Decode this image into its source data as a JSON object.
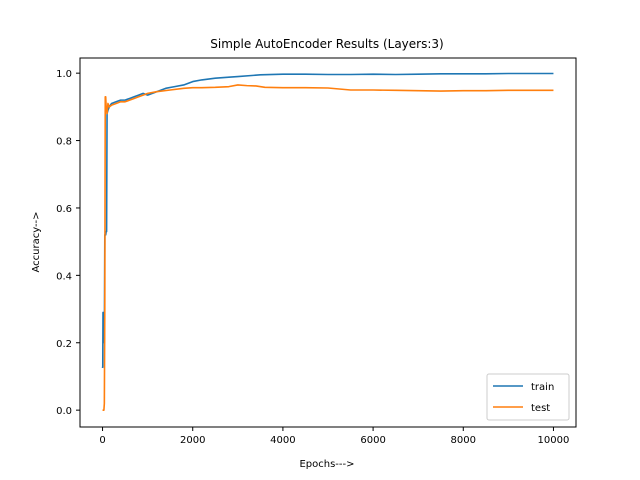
{
  "chart_data": {
    "type": "line",
    "title": "Simple AutoEncoder Results (Layers:3)",
    "xlabel": "Epochs--->",
    "ylabel": "Accuracy-->",
    "xlim": [
      -500,
      10500
    ],
    "ylim": [
      -0.05,
      1.045
    ],
    "xticks": [
      0,
      2000,
      4000,
      6000,
      8000,
      10000
    ],
    "yticks": [
      0.0,
      0.2,
      0.4,
      0.6,
      0.8,
      1.0
    ],
    "xtick_labels": [
      "0",
      "2000",
      "4000",
      "6000",
      "8000",
      "10000"
    ],
    "ytick_labels": [
      "0.0",
      "0.2",
      "0.4",
      "0.6",
      "0.8",
      "1.0"
    ],
    "grid": false,
    "legend_position": "lower right",
    "series": [
      {
        "name": "train",
        "color": "#1f77b4",
        "x": [
          0,
          5,
          10,
          20,
          30,
          40,
          50,
          60,
          70,
          80,
          90,
          100,
          120,
          150,
          200,
          300,
          400,
          500,
          600,
          700,
          800,
          900,
          1000,
          1200,
          1400,
          1600,
          1800,
          2000,
          2200,
          2500,
          2800,
          3000,
          3500,
          4000,
          4500,
          5000,
          5500,
          6000,
          6500,
          7000,
          7500,
          8000,
          8500,
          9000,
          9500,
          10000
        ],
        "y": [
          0.125,
          0.13,
          0.29,
          0.28,
          0.27,
          0.2,
          0.52,
          0.52,
          0.52,
          0.53,
          0.53,
          0.88,
          0.89,
          0.9,
          0.91,
          0.915,
          0.92,
          0.92,
          0.925,
          0.93,
          0.935,
          0.94,
          0.935,
          0.945,
          0.955,
          0.96,
          0.965,
          0.975,
          0.98,
          0.985,
          0.988,
          0.99,
          0.995,
          0.997,
          0.997,
          0.996,
          0.996,
          0.997,
          0.996,
          0.997,
          0.998,
          0.998,
          0.998,
          0.999,
          0.999,
          0.999
        ]
      },
      {
        "name": "test",
        "color": "#ff7f0e",
        "x": [
          0,
          10,
          20,
          30,
          40,
          50,
          60,
          70,
          80,
          100,
          120,
          150,
          200,
          300,
          400,
          500,
          600,
          700,
          800,
          900,
          1000,
          1200,
          1500,
          1800,
          2000,
          2200,
          2500,
          2800,
          3000,
          3200,
          3400,
          3600,
          4000,
          4500,
          5000,
          5500,
          6000,
          6500,
          7000,
          7500,
          8000,
          8500,
          9000,
          9500,
          10000
        ],
        "y": [
          0.0,
          0.0,
          0.0,
          0.0,
          0.02,
          0.3,
          0.93,
          0.93,
          0.9,
          0.88,
          0.91,
          0.9,
          0.905,
          0.91,
          0.915,
          0.915,
          0.92,
          0.925,
          0.93,
          0.935,
          0.94,
          0.945,
          0.95,
          0.955,
          0.957,
          0.957,
          0.958,
          0.96,
          0.965,
          0.963,
          0.962,
          0.958,
          0.957,
          0.957,
          0.956,
          0.95,
          0.95,
          0.949,
          0.948,
          0.947,
          0.948,
          0.948,
          0.949,
          0.949,
          0.949
        ]
      }
    ]
  }
}
